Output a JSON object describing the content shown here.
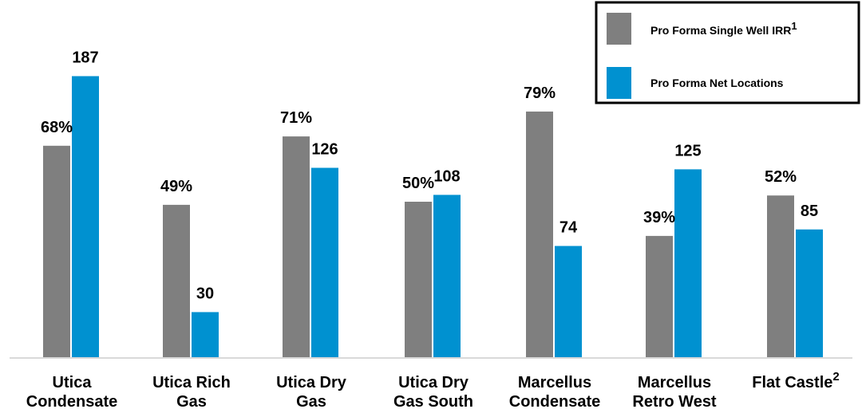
{
  "chart_data": {
    "type": "bar",
    "categories": [
      [
        "Utica",
        "Condensate"
      ],
      [
        "Utica Rich",
        "Gas"
      ],
      [
        "Utica Dry",
        "Gas"
      ],
      [
        "Utica Dry",
        "Gas South"
      ],
      [
        "Marcellus",
        "Condensate"
      ],
      [
        "Marcellus",
        "Retro West"
      ],
      [
        "Flat Castle"
      ]
    ],
    "category_superscripts": [
      "",
      "",
      "",
      "",
      "",
      "",
      "2"
    ],
    "series": [
      {
        "name": "Pro Forma Single Well IRR",
        "name_superscript": "1",
        "color": "#7f7f7f",
        "values": [
          68,
          49,
          71,
          50,
          79,
          39,
          52
        ],
        "labels": [
          "68%",
          "49%",
          "71%",
          "50%",
          "79%",
          "39%",
          "52%"
        ]
      },
      {
        "name": "Pro Forma Net Locations",
        "name_superscript": "",
        "color": "#0091d0",
        "values": [
          187,
          30,
          126,
          108,
          74,
          125,
          85
        ],
        "labels": [
          "187",
          "30",
          "126",
          "108",
          "74",
          "125",
          "85"
        ]
      }
    ],
    "legend_position": "top-right",
    "grid": false,
    "axis_color": "#d9d9d9"
  }
}
